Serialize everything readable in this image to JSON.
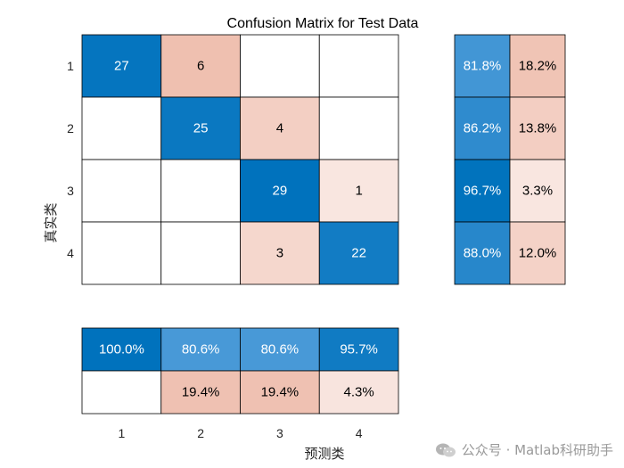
{
  "chart_data": {
    "type": "heatmap",
    "title": "Confusion Matrix for Test Data",
    "xlabel": "预测类",
    "ylabel": "真实类",
    "classes": [
      "1",
      "2",
      "3",
      "4"
    ],
    "matrix": [
      [
        27,
        6,
        0,
        0
      ],
      [
        0,
        25,
        4,
        0
      ],
      [
        0,
        0,
        29,
        1
      ],
      [
        0,
        0,
        3,
        22
      ]
    ],
    "row_summary": [
      [
        "81.8%",
        "18.2%"
      ],
      [
        "86.2%",
        "13.8%"
      ],
      [
        "96.7%",
        "3.3%"
      ],
      [
        "88.0%",
        "12.0%"
      ]
    ],
    "column_summary": {
      "correct": [
        "100.0%",
        "80.6%",
        "80.6%",
        "95.7%"
      ],
      "incorrect": [
        "",
        "19.4%",
        "19.4%",
        "4.3%"
      ]
    },
    "colors": {
      "blue_dark": "#0072bd",
      "blue_light": "#4a9ad8",
      "red_light": "#fbeeea",
      "red_dark": "#efc0b0",
      "grid": "#000000"
    }
  },
  "watermark": {
    "logo_icon": "wechat-logo-icon",
    "text": "公众号 · Matlab科研助手"
  }
}
